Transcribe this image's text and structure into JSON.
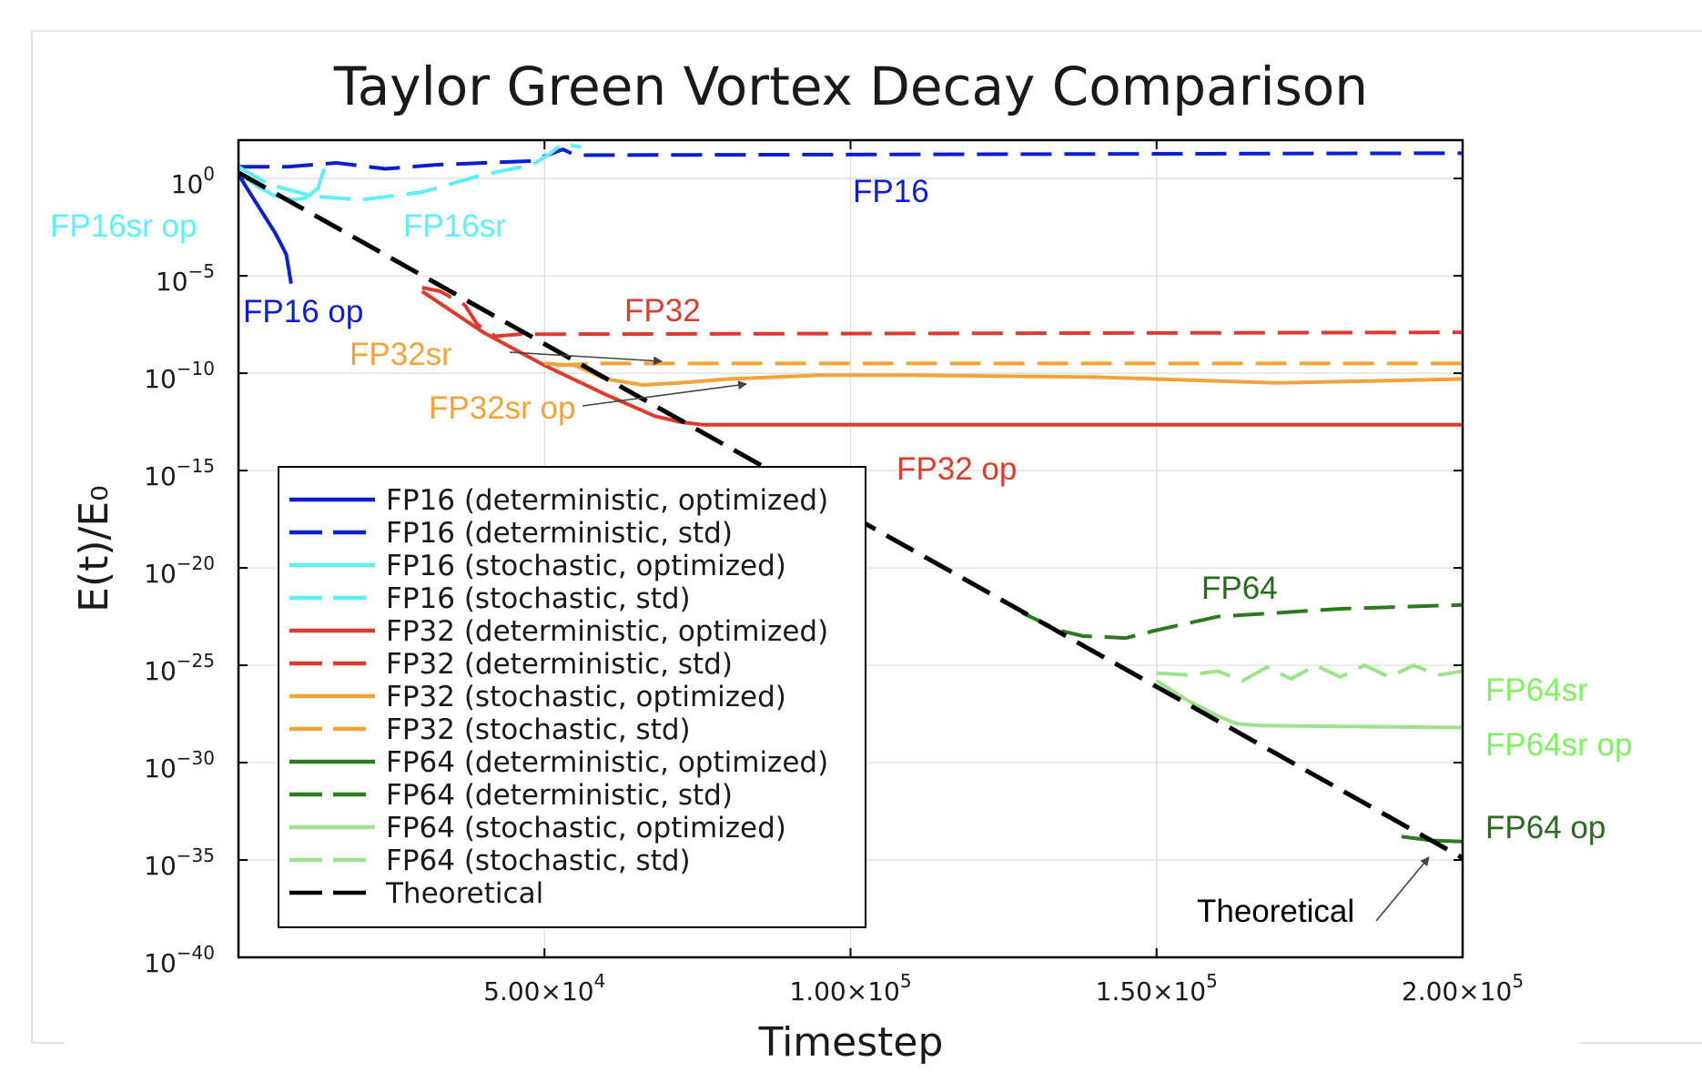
{
  "chart_data": {
    "type": "line",
    "title": "Taylor Green Vortex Decay Comparison",
    "xlabel": "Timestep",
    "ylabel": "E(t)/E₀",
    "xlim": [
      0,
      200000
    ],
    "ylim_log10": [
      -40,
      2
    ],
    "grid": true,
    "legend_position": "lower-left",
    "x_ticks": [
      {
        "value": 50000,
        "mantissa": "5.00",
        "exp": "4"
      },
      {
        "value": 100000,
        "mantissa": "1.00",
        "exp": "5"
      },
      {
        "value": 150000,
        "mantissa": "1.50",
        "exp": "5"
      },
      {
        "value": 200000,
        "mantissa": "2.00",
        "exp": "5"
      }
    ],
    "y_ticks": [
      {
        "value": 0,
        "exp": "0"
      },
      {
        "value": -5,
        "exp": "−5"
      },
      {
        "value": -10,
        "exp": "−10"
      },
      {
        "value": -15,
        "exp": "−15"
      },
      {
        "value": -20,
        "exp": "−20"
      },
      {
        "value": -25,
        "exp": "−25"
      },
      {
        "value": -30,
        "exp": "−30"
      },
      {
        "value": -35,
        "exp": "−35"
      },
      {
        "value": -40,
        "exp": "−40"
      }
    ],
    "y_tick_base": "10",
    "x_tick_times": "×10",
    "series": [
      {
        "name": "FP16 (deterministic, optimized)",
        "color": "#0b1ed6",
        "dash": false,
        "points": [
          [
            0,
            0.2
          ],
          [
            2000,
            -0.8
          ],
          [
            4000,
            -1.8
          ],
          [
            6000,
            -2.8
          ],
          [
            7000,
            -3.4
          ],
          [
            7800,
            -3.9
          ],
          [
            8300,
            -4.8
          ],
          [
            8600,
            -5.4
          ]
        ]
      },
      {
        "name": "FP16 (deterministic, std)",
        "color": "#0b1ed6",
        "dash": true,
        "points": [
          [
            0,
            0.6
          ],
          [
            8000,
            0.6
          ],
          [
            16000,
            0.8
          ],
          [
            24000,
            0.5
          ],
          [
            32000,
            0.7
          ],
          [
            40000,
            0.8
          ],
          [
            48000,
            0.9
          ],
          [
            53000,
            1.5
          ],
          [
            55000,
            1.2
          ],
          [
            200000,
            1.3
          ]
        ]
      },
      {
        "name": "FP16 (stochastic, optimized)",
        "color": "#5ef0f7",
        "dash": false,
        "points": [
          [
            0,
            0.3
          ],
          [
            3000,
            -0.4
          ],
          [
            6000,
            -0.9
          ],
          [
            9000,
            -1.1
          ],
          [
            11000,
            -1.0
          ],
          [
            13000,
            -0.5
          ],
          [
            14000,
            0.5
          ]
        ]
      },
      {
        "name": "FP16 (stochastic, std)",
        "color": "#5ef0f7",
        "dash": true,
        "points": [
          [
            0,
            0.6
          ],
          [
            5000,
            -0.3
          ],
          [
            12000,
            -0.9
          ],
          [
            20000,
            -1.1
          ],
          [
            30000,
            -0.7
          ],
          [
            40000,
            0.2
          ],
          [
            48000,
            0.7
          ],
          [
            51000,
            1.3
          ],
          [
            53000,
            1.8
          ],
          [
            56000,
            1.6
          ]
        ]
      },
      {
        "name": "FP32 (deterministic, optimized)",
        "color": "#e23a2a",
        "dash": false,
        "points": [
          [
            30000,
            -5.8
          ],
          [
            40000,
            -7.9
          ],
          [
            50000,
            -9.6
          ],
          [
            60000,
            -11.1
          ],
          [
            68000,
            -12.2
          ],
          [
            72000,
            -12.5
          ],
          [
            76000,
            -12.65
          ],
          [
            200000,
            -12.65
          ]
        ]
      },
      {
        "name": "FP32 (deterministic, std)",
        "color": "#e23a2a",
        "dash": true,
        "points": [
          [
            30000,
            -5.6
          ],
          [
            33000,
            -5.8
          ],
          [
            37000,
            -6.5
          ],
          [
            39000,
            -7.5
          ],
          [
            42000,
            -8.1
          ],
          [
            46000,
            -8.0
          ],
          [
            200000,
            -7.9
          ]
        ]
      },
      {
        "name": "FP32 (stochastic, optimized)",
        "color": "#f2a43a",
        "dash": false,
        "points": [
          [
            50000,
            -9.5
          ],
          [
            55000,
            -9.6
          ],
          [
            60000,
            -10.3
          ],
          [
            66000,
            -10.6
          ],
          [
            72000,
            -10.5
          ],
          [
            80000,
            -10.3
          ],
          [
            95000,
            -10.1
          ],
          [
            110000,
            -10.1
          ],
          [
            140000,
            -10.2
          ],
          [
            170000,
            -10.5
          ],
          [
            200000,
            -10.3
          ]
        ]
      },
      {
        "name": "FP32 (stochastic, std)",
        "color": "#f2a43a",
        "dash": true,
        "points": [
          [
            52000,
            -9.6
          ],
          [
            58000,
            -9.5
          ],
          [
            200000,
            -9.5
          ]
        ]
      },
      {
        "name": "FP64 (deterministic, optimized)",
        "color": "#2a7a1e",
        "dash": false,
        "points": [
          [
            190000,
            -33.8
          ],
          [
            195000,
            -34.0
          ],
          [
            200000,
            -34.05
          ]
        ]
      },
      {
        "name": "FP64 (deterministic, std)",
        "color": "#2a7a1e",
        "dash": true,
        "points": [
          [
            128000,
            -22.3
          ],
          [
            134000,
            -23.2
          ],
          [
            138000,
            -23.5
          ],
          [
            145000,
            -23.6
          ],
          [
            150000,
            -23.2
          ],
          [
            160000,
            -22.5
          ],
          [
            180000,
            -22.1
          ],
          [
            200000,
            -21.9
          ]
        ]
      },
      {
        "name": "FP64 (stochastic, optimized)",
        "color": "#9de38a",
        "dash": false,
        "points": [
          [
            150000,
            -25.8
          ],
          [
            155000,
            -26.8
          ],
          [
            160000,
            -27.6
          ],
          [
            163000,
            -28.0
          ],
          [
            167000,
            -28.1
          ],
          [
            200000,
            -28.2
          ]
        ]
      },
      {
        "name": "FP64 (stochastic, std)",
        "color": "#9de38a",
        "dash": true,
        "points": [
          [
            150000,
            -25.4
          ],
          [
            155000,
            -25.5
          ],
          [
            160000,
            -25.3
          ],
          [
            164000,
            -25.8
          ],
          [
            168000,
            -25.1
          ],
          [
            172000,
            -25.7
          ],
          [
            176000,
            -25.0
          ],
          [
            180000,
            -25.6
          ],
          [
            184000,
            -25.0
          ],
          [
            188000,
            -25.6
          ],
          [
            192000,
            -25.0
          ],
          [
            196000,
            -25.5
          ],
          [
            200000,
            -25.3
          ]
        ]
      },
      {
        "name": "Theoretical",
        "color": "#000000",
        "dash": true,
        "points": [
          [
            0,
            0.3
          ],
          [
            200000,
            -34.9
          ]
        ]
      }
    ],
    "annotations": [
      {
        "text": "FP16",
        "color": "#0b1ed6"
      },
      {
        "text": "FP16sr op",
        "color": "#5ef0f7"
      },
      {
        "text": "FP16sr",
        "color": "#5ef0f7"
      },
      {
        "text": "FP16 op",
        "color": "#0b1ed6"
      },
      {
        "text": "FP32",
        "color": "#e23a2a"
      },
      {
        "text": "FP32sr",
        "color": "#f2a43a"
      },
      {
        "text": "FP32sr op",
        "color": "#f2a43a"
      },
      {
        "text": "FP32 op",
        "color": "#e23a2a"
      },
      {
        "text": "FP64",
        "color": "#2a6a1e"
      },
      {
        "text": "FP64sr",
        "color": "#7ef25e"
      },
      {
        "text": "FP64sr op",
        "color": "#7ef25e"
      },
      {
        "text": "FP64 op",
        "color": "#2a6a1e"
      },
      {
        "text": "Theoretical",
        "color": "#000000"
      }
    ]
  }
}
